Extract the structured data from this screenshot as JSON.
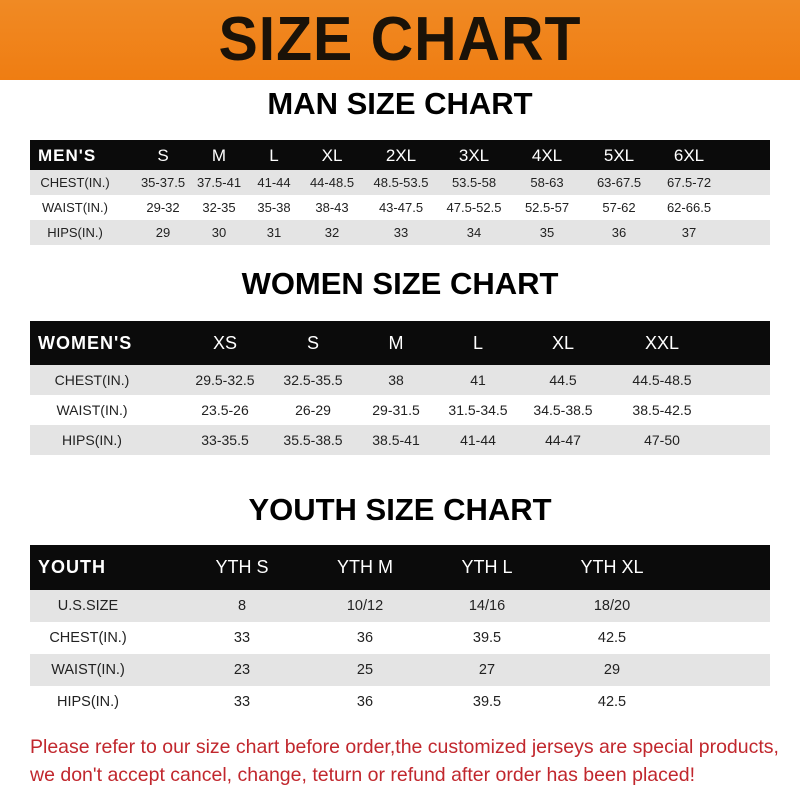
{
  "banner_title": "SIZE CHART",
  "men": {
    "title": "MAN SIZE CHART",
    "header": [
      "MEN'S",
      "S",
      "M",
      "L",
      "XL",
      "2XL",
      "3XL",
      "4XL",
      "5XL",
      "6XL"
    ],
    "rows": [
      [
        "CHEST(IN.)",
        "35-37.5",
        "37.5-41",
        "41-44",
        "44-48.5",
        "48.5-53.5",
        "53.5-58",
        "58-63",
        "63-67.5",
        "67.5-72"
      ],
      [
        "WAIST(IN.)",
        "29-32",
        "32-35",
        "35-38",
        "38-43",
        "43-47.5",
        "47.5-52.5",
        "52.5-57",
        "57-62",
        "62-66.5"
      ],
      [
        "HIPS(IN.)",
        "29",
        "30",
        "31",
        "32",
        "33",
        "34",
        "35",
        "36",
        "37"
      ]
    ]
  },
  "women": {
    "title": "WOMEN SIZE CHART",
    "header": [
      "WOMEN'S",
      "XS",
      "S",
      "M",
      "L",
      "XL",
      "XXL"
    ],
    "rows": [
      [
        "CHEST(IN.)",
        "29.5-32.5",
        "32.5-35.5",
        "38",
        "41",
        "44.5",
        "44.5-48.5"
      ],
      [
        "WAIST(IN.)",
        "23.5-26",
        "26-29",
        "29-31.5",
        "31.5-34.5",
        "34.5-38.5",
        "38.5-42.5"
      ],
      [
        "HIPS(IN.)",
        "33-35.5",
        "35.5-38.5",
        "38.5-41",
        "41-44",
        "44-47",
        "47-50"
      ]
    ]
  },
  "youth": {
    "title": "YOUTH SIZE CHART",
    "header": [
      "YOUTH",
      "YTH S",
      "YTH M",
      "YTH L",
      "YTH XL"
    ],
    "rows": [
      [
        "U.S.SIZE",
        "8",
        "10/12",
        "14/16",
        "18/20"
      ],
      [
        "CHEST(IN.)",
        "33",
        "36",
        "39.5",
        "42.5"
      ],
      [
        "WAIST(IN.)",
        "23",
        "25",
        "27",
        "29"
      ],
      [
        "HIPS(IN.)",
        "33",
        "36",
        "39.5",
        "42.5"
      ]
    ]
  },
  "footer": {
    "line1": "Please refer to our size chart before order,the customized jerseys are special products,",
    "line2": "we don't accept cancel, change, teturn or refund after order has been placed!"
  },
  "colors": {
    "banner": "#ef7d12",
    "header_row": "#0b0b0b",
    "footer_text": "#c1272d"
  }
}
